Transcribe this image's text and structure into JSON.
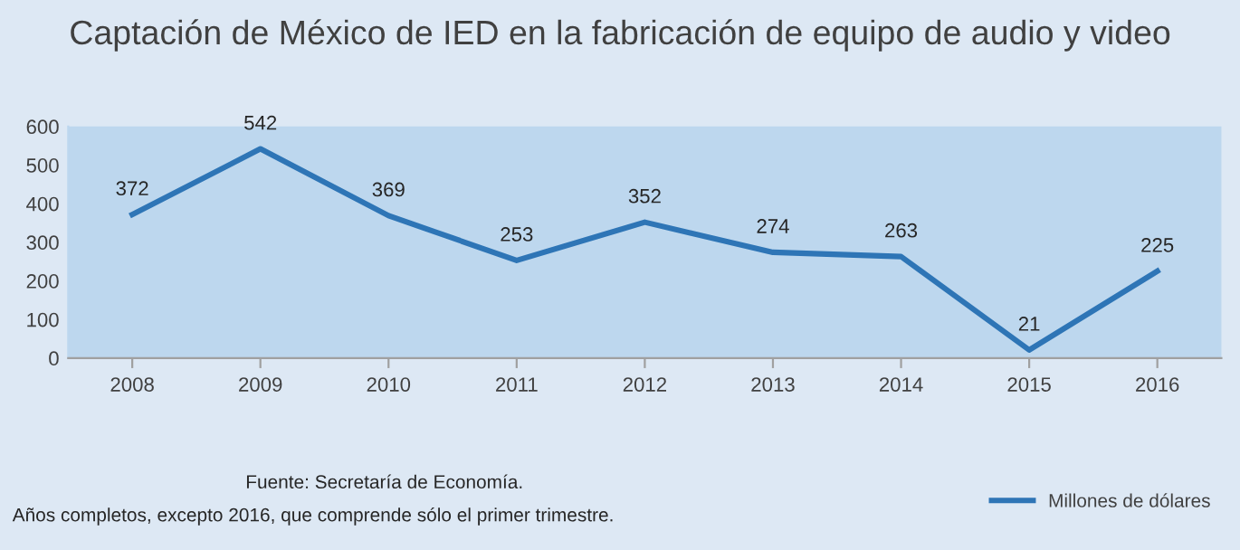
{
  "chart_data": {
    "type": "line",
    "title": "Captación de México de IED en la fabricación de equipo de audio y video",
    "categories": [
      "2008",
      "2009",
      "2010",
      "2011",
      "2012",
      "2013",
      "2014",
      "2015",
      "2016"
    ],
    "series": [
      {
        "name": "Millones de dólares",
        "color": "#2e75b6",
        "values": [
          372,
          542,
          369,
          253,
          352,
          274,
          263,
          21,
          225
        ]
      }
    ],
    "ylim": [
      0,
      600
    ],
    "yticks": [
      0,
      100,
      200,
      300,
      400,
      500,
      600
    ],
    "data_labels": true,
    "grid": false,
    "legend": "bottom right",
    "marker": "none",
    "line_style": "solid",
    "annotations": [
      "Fuente: Secretaría de Economía.",
      "Años completos, excepto 2016, que comprende sólo el primer trimestre."
    ]
  }
}
